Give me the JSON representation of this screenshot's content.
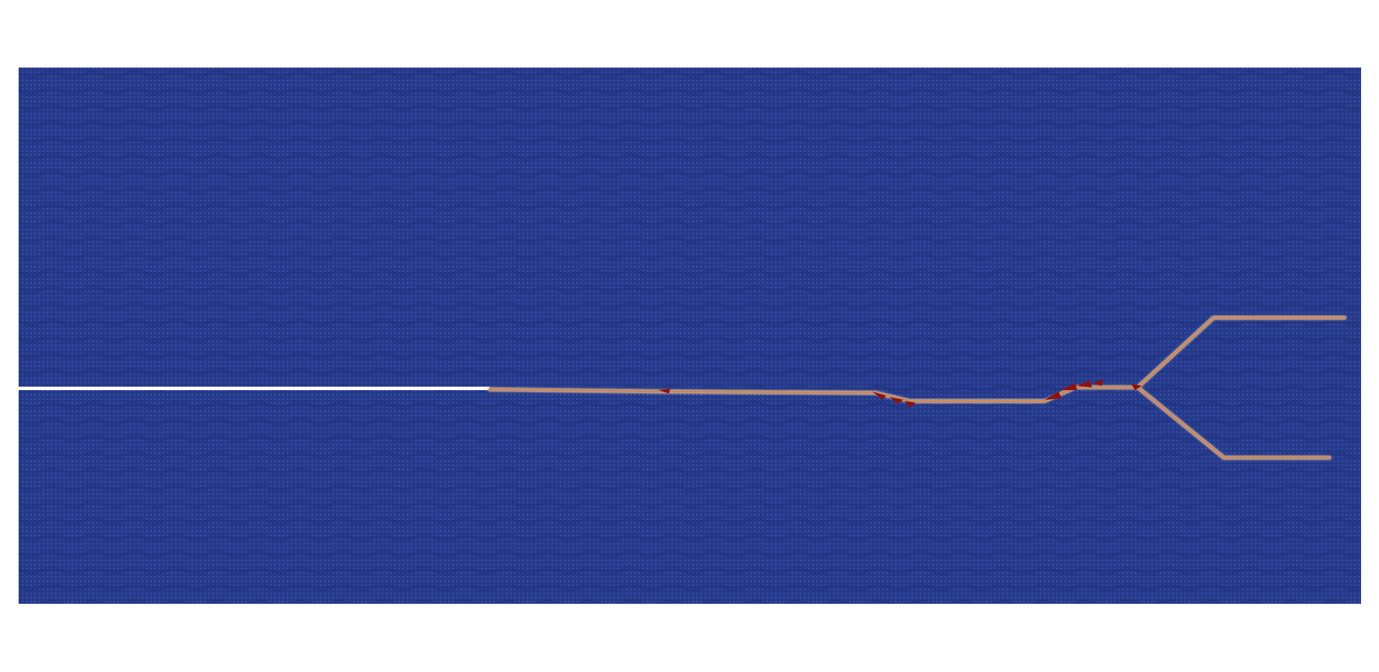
{
  "figure": {
    "background_color": "#ffffff",
    "plate_color": "#253a8c",
    "plate_texture_color": "#5a6fb0",
    "crack_core_color": "#8a1212",
    "crack_halo_color": "#d9b48c",
    "initial_notch_color": "#ffffff",
    "grid_visible": true,
    "axes_visible": false,
    "legend_visible": false
  }
}
